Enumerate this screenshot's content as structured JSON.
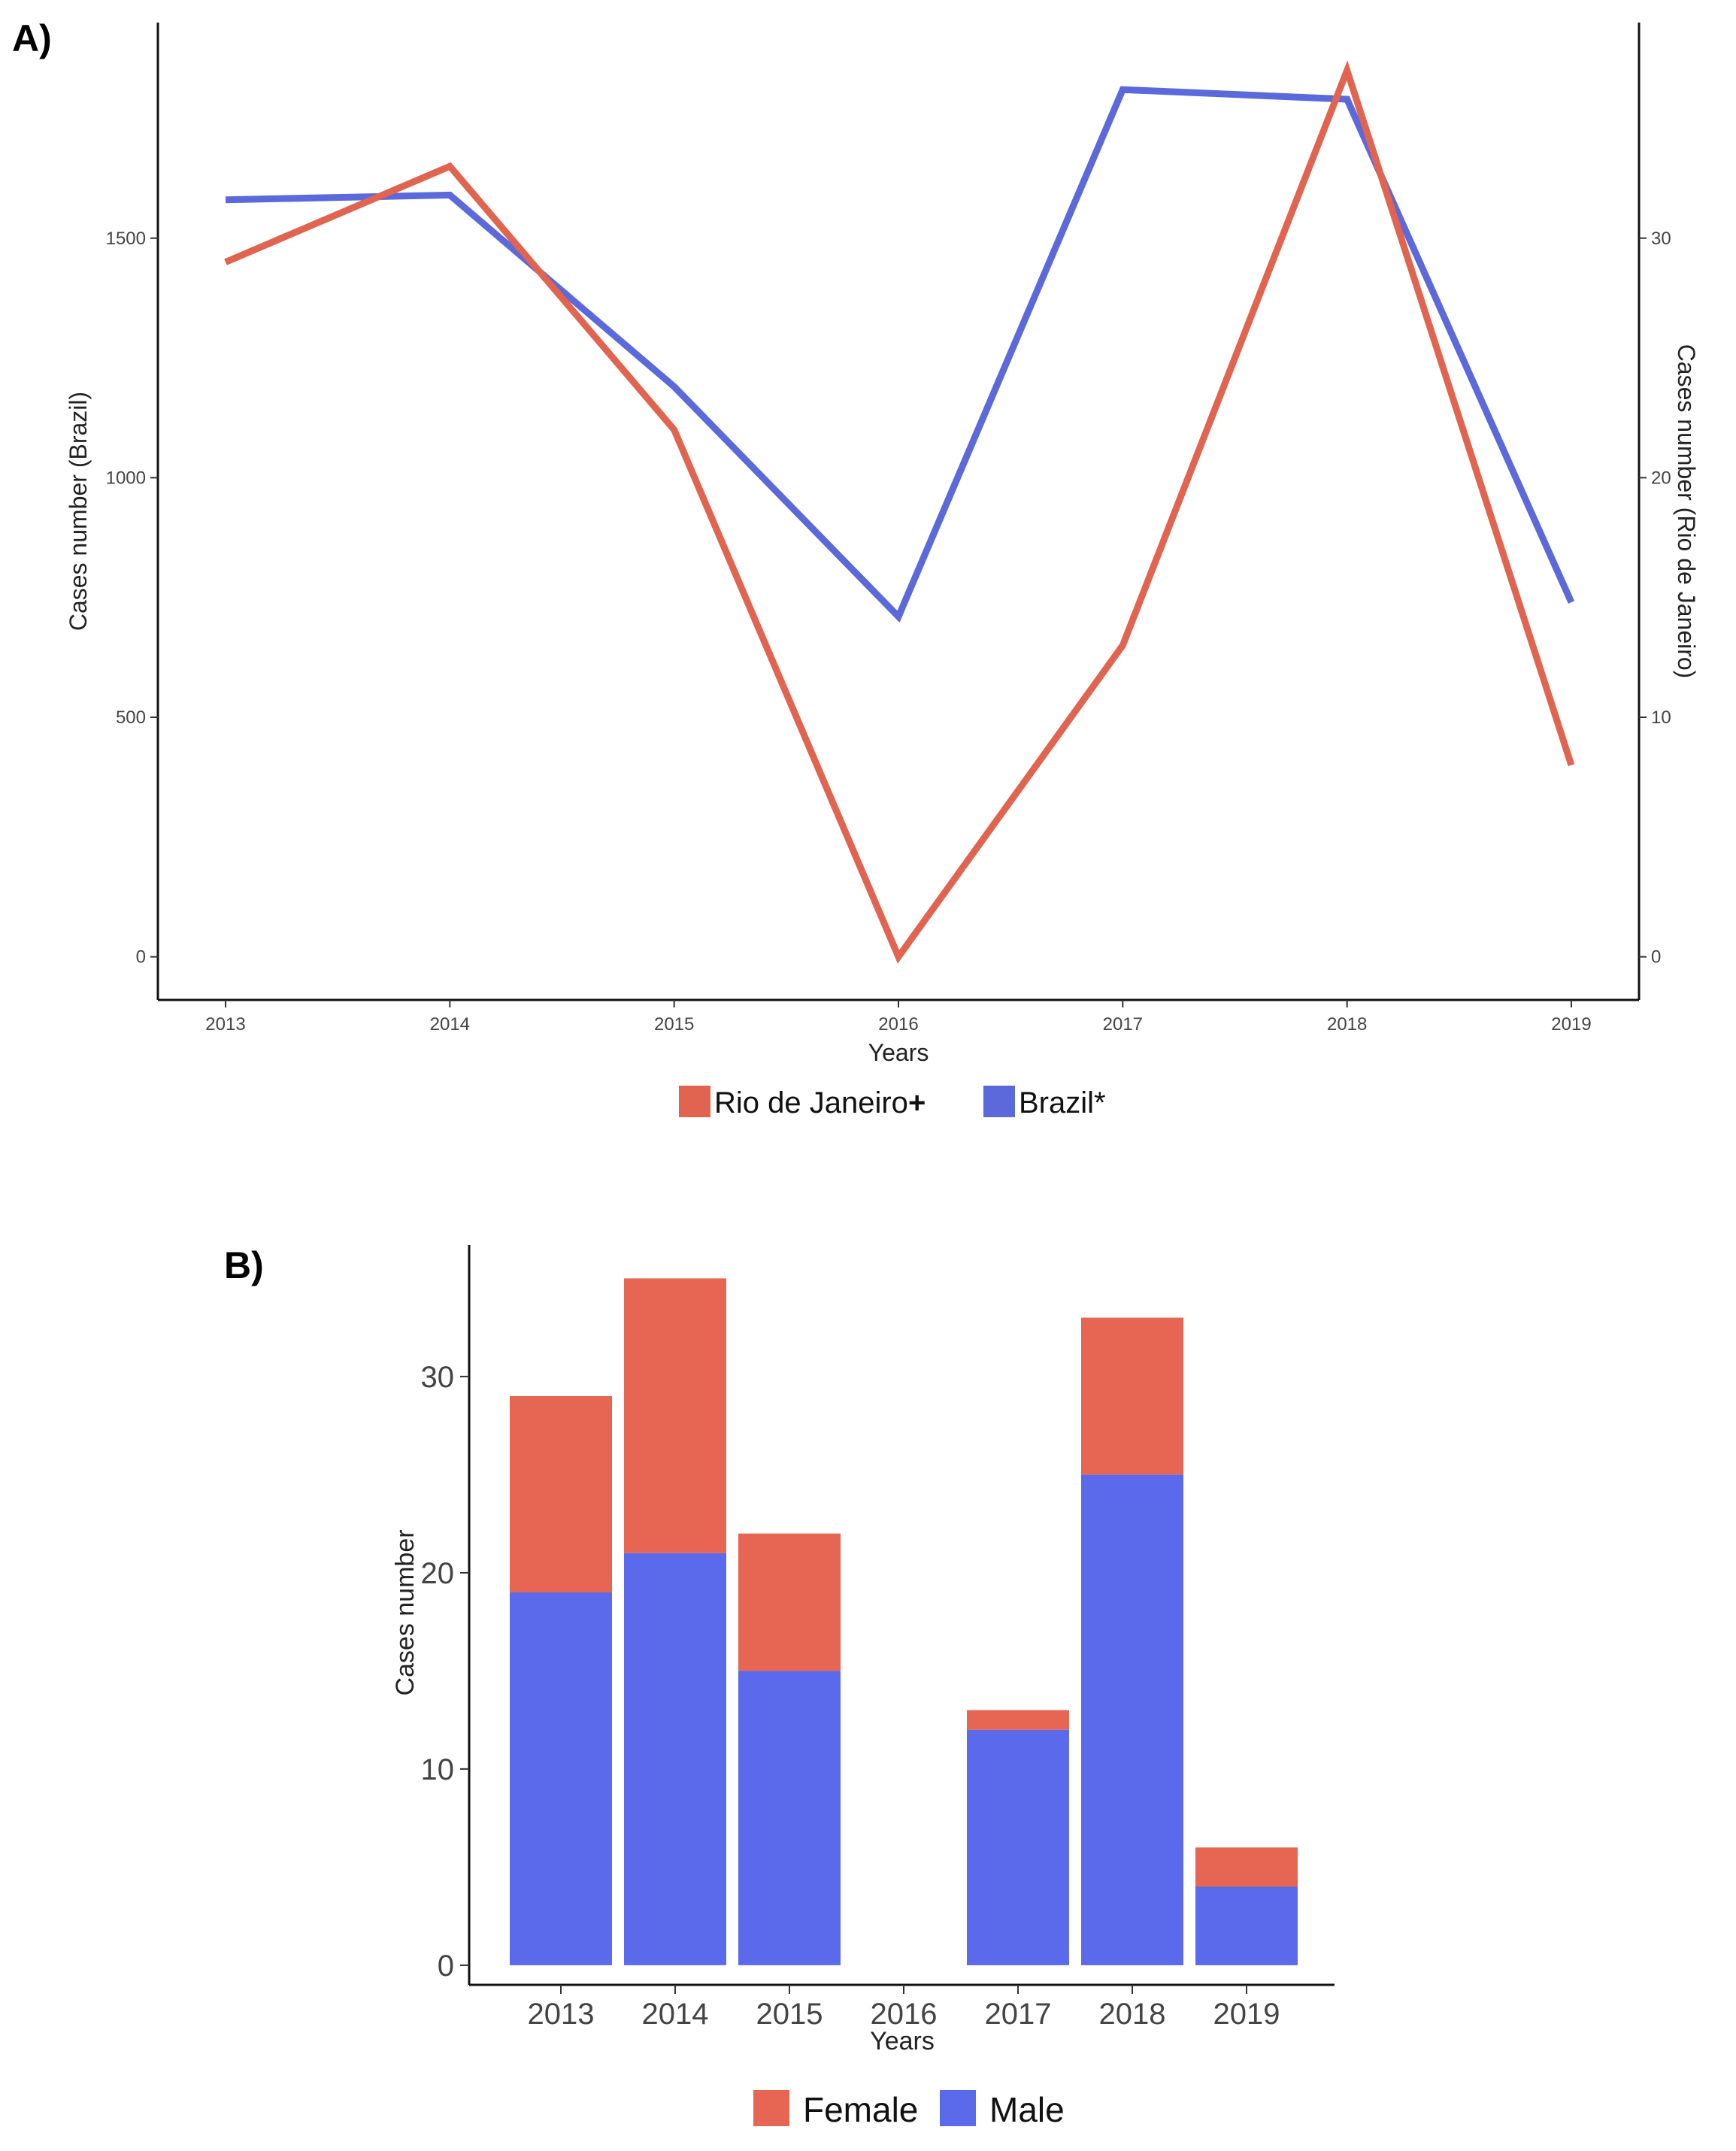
{
  "chart_data": [
    {
      "panel": "A)",
      "type": "line",
      "x": [
        "2013",
        "2014",
        "2015",
        "2016",
        "2017",
        "2018",
        "2019"
      ],
      "xlabel": "Years",
      "ylabel_left": "Cases number (Brazil)",
      "ylabel_right": "Cases number (Rio de Janeiro)",
      "y_left_ticks": [
        "0",
        "500",
        "1000",
        "1500"
      ],
      "y_right_ticks": [
        "0",
        "10",
        "20",
        "30"
      ],
      "ylim_left": [
        -90,
        1950
      ],
      "ylim_right": [
        -1.8,
        39
      ],
      "series": [
        {
          "name": "Rio de Janeiro",
          "axis": "right",
          "color": "#e0644f",
          "values": [
            29,
            33,
            22,
            0,
            13,
            37,
            8
          ]
        },
        {
          "name": "Brazil",
          "axis": "left",
          "color": "#5b69da",
          "values": [
            1580,
            1590,
            1190,
            710,
            1810,
            1790,
            740
          ]
        }
      ],
      "legend": {
        "position": "bottom",
        "items": [
          {
            "label": "Rio de Janeiro",
            "marker": "+",
            "color": "#e0644f"
          },
          {
            "label": "Brazil",
            "marker": "*",
            "color": "#5b69da"
          }
        ]
      },
      "grid": false
    },
    {
      "panel": "B)",
      "type": "bar",
      "stacked": true,
      "categories": [
        "2013",
        "2014",
        "2015",
        "2016",
        "2017",
        "2018",
        "2019"
      ],
      "xlabel": "Years",
      "ylabel": "Cases number",
      "y_ticks": [
        "0",
        "10",
        "20",
        "30"
      ],
      "ylim": [
        -1,
        36.7
      ],
      "series": [
        {
          "name": "Male",
          "color": "#5b69eb",
          "values": [
            19,
            21,
            15,
            0,
            12,
            25,
            4
          ]
        },
        {
          "name": "Female",
          "color": "#e66553",
          "values": [
            10,
            14,
            7,
            0,
            1,
            8,
            2
          ]
        }
      ],
      "legend": {
        "position": "bottom",
        "items": [
          {
            "label": "Female",
            "color": "#e66553"
          },
          {
            "label": "Male",
            "color": "#5b69eb"
          }
        ]
      },
      "grid": false
    }
  ]
}
